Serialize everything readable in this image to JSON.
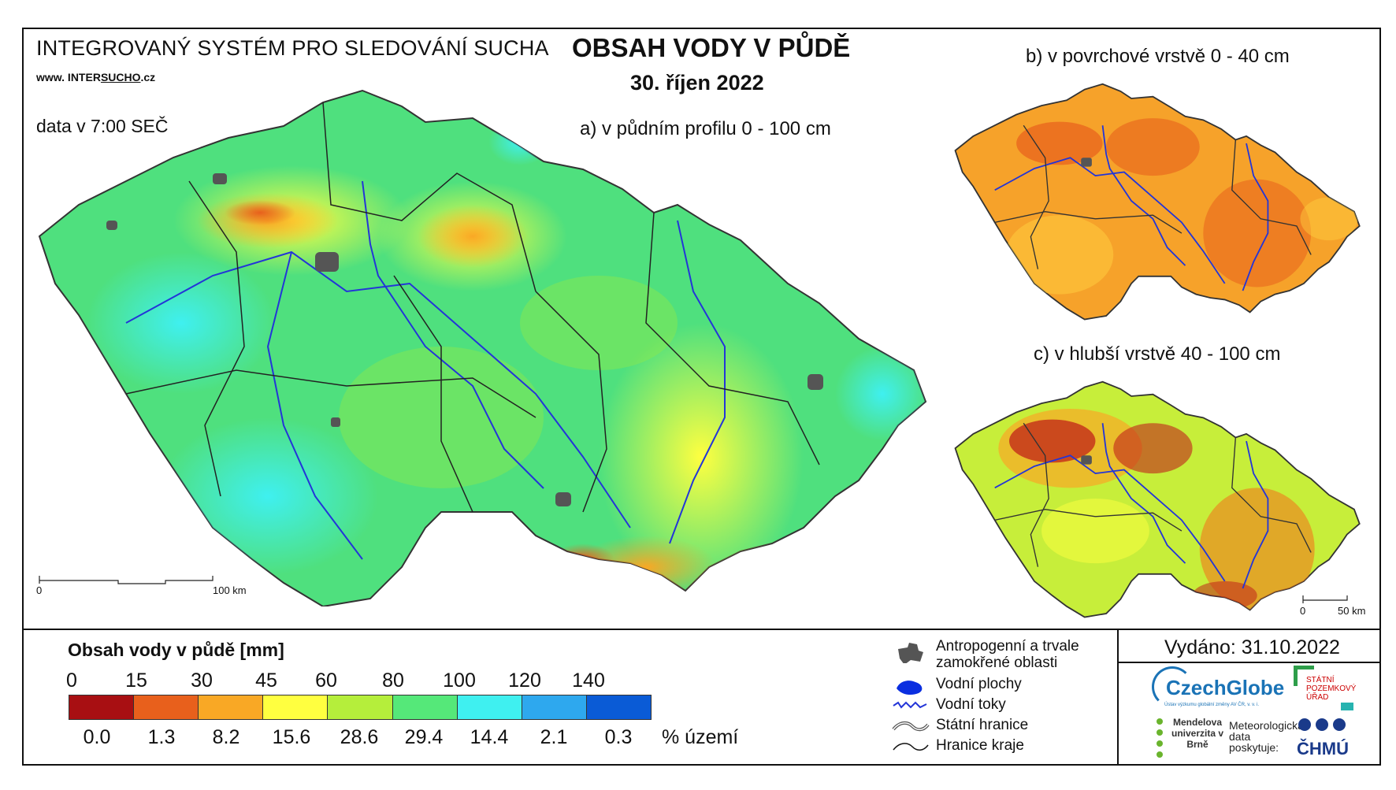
{
  "header": {
    "system_title": "INTEGROVANÝ SYSTÉM PRO SLEDOVÁNÍ SUCHA",
    "url_prefix": "www. INTER",
    "url_emph": "SUCHO",
    "url_suffix": ".cz",
    "data_time": "data v 7:00 SEČ",
    "main_title": "OBSAH VODY V PŮDĚ",
    "main_date": "30. říjen 2022"
  },
  "maps": {
    "a_label": "a) v půdním profilu 0 - 100 cm",
    "b_label": "b) v povrchové vrstvě 0 - 40 cm",
    "c_label": "c) v hlubší vrstvě 40 - 100 cm",
    "scale_main": {
      "start": "0",
      "end": "100 km"
    },
    "scale_small": {
      "start": "0",
      "end": "50 km"
    }
  },
  "legend": {
    "title": "Obsah vody v půdě  [mm]",
    "thresholds": [
      "0",
      "15",
      "30",
      "45",
      "60",
      "80",
      "100",
      "120",
      "140"
    ],
    "colors": [
      "#a80f12",
      "#e8601c",
      "#f9a825",
      "#ffff40",
      "#b5ee3b",
      "#55e879",
      "#3ff0f0",
      "#2ea8ee",
      "#0a5bd6"
    ],
    "percent": [
      "0.0",
      "1.3",
      "8.2",
      "15.6",
      "28.6",
      "29.4",
      "14.4",
      "2.1",
      "0.3"
    ],
    "percent_unit": "% území"
  },
  "symbols": {
    "urban": "Antropogenní a trvale zamokřené oblasti",
    "water_bodies": "Vodní plochy",
    "rivers": "Vodní toky",
    "state_border": "Státní hranice",
    "region_border": "Hranice kraje"
  },
  "footer": {
    "issued": "Vydáno: 31.10.2022",
    "czechglobe": "CzechGlobe",
    "czechglobe_sub": "Ústav výzkumu globální změny AV ČR, v. v. i.",
    "spu": "STÁTNÍ POZEMKOVÝ ÚŘAD",
    "mendel": "Mendelova univerzita v Brně",
    "met_data": "Meteorologická data poskytuje:",
    "chmu": "ČHMÚ"
  }
}
